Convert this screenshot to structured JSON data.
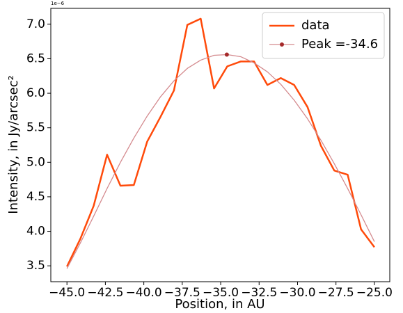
{
  "chart_data": {
    "type": "line",
    "xlabel": "Position, in AU",
    "ylabel": "Intensity, in Jy/arcsec²",
    "y_offset_label": "1e−6",
    "x": [
      -45.0,
      -44.13,
      -43.26,
      -42.39,
      -41.52,
      -40.65,
      -39.78,
      -38.91,
      -38.04,
      -37.17,
      -36.3,
      -35.43,
      -34.57,
      -33.7,
      -32.83,
      -31.96,
      -31.09,
      -30.22,
      -29.35,
      -28.48,
      -27.61,
      -26.74,
      -25.87,
      -25.0
    ],
    "series": [
      {
        "name": "data",
        "color": "#ff4a0a",
        "width": 2.5,
        "values": [
          3.49,
          3.89,
          4.37,
          5.11,
          4.66,
          4.67,
          5.3,
          5.66,
          6.04,
          6.99,
          7.08,
          6.07,
          6.39,
          6.46,
          6.46,
          6.12,
          6.22,
          6.12,
          5.8,
          5.24,
          4.88,
          4.82,
          4.03,
          3.77
        ]
      },
      {
        "name": "Peak =-34.6",
        "color": "#d48a8e",
        "width": 1.3,
        "marker_color": "#a52a2a",
        "values": [
          3.46,
          3.83,
          4.22,
          4.62,
          5.0,
          5.35,
          5.67,
          5.95,
          6.18,
          6.36,
          6.48,
          6.55,
          6.56,
          6.53,
          6.44,
          6.31,
          6.13,
          5.9,
          5.63,
          5.32,
          4.98,
          4.62,
          4.24,
          3.85
        ],
        "peak": {
          "x": -34.6,
          "y": 6.56
        }
      }
    ],
    "xlim": [
      -46.05,
      -24.0
    ],
    "ylim": [
      3.27,
      7.23
    ],
    "xticks": [
      {
        "value": -45.0,
        "label": "−45.0"
      },
      {
        "value": -42.5,
        "label": "−42.5"
      },
      {
        "value": -40.0,
        "label": "−40.0"
      },
      {
        "value": -37.5,
        "label": "−37.5"
      },
      {
        "value": -35.0,
        "label": "−35.0"
      },
      {
        "value": -32.5,
        "label": "−32.5"
      },
      {
        "value": -30.0,
        "label": "−30.0"
      },
      {
        "value": -27.5,
        "label": "−27.5"
      },
      {
        "value": -25.0,
        "label": "−25.0"
      }
    ],
    "yticks": [
      3.5,
      {
        "value": 4.0,
        "label": "4.0"
      },
      4.5,
      {
        "value": 5.0,
        "label": "5.0"
      },
      5.5,
      {
        "value": 6.0,
        "label": "6.0"
      },
      6.5,
      {
        "value": 7.0,
        "label": "7.0"
      }
    ],
    "legend": "upper right"
  }
}
